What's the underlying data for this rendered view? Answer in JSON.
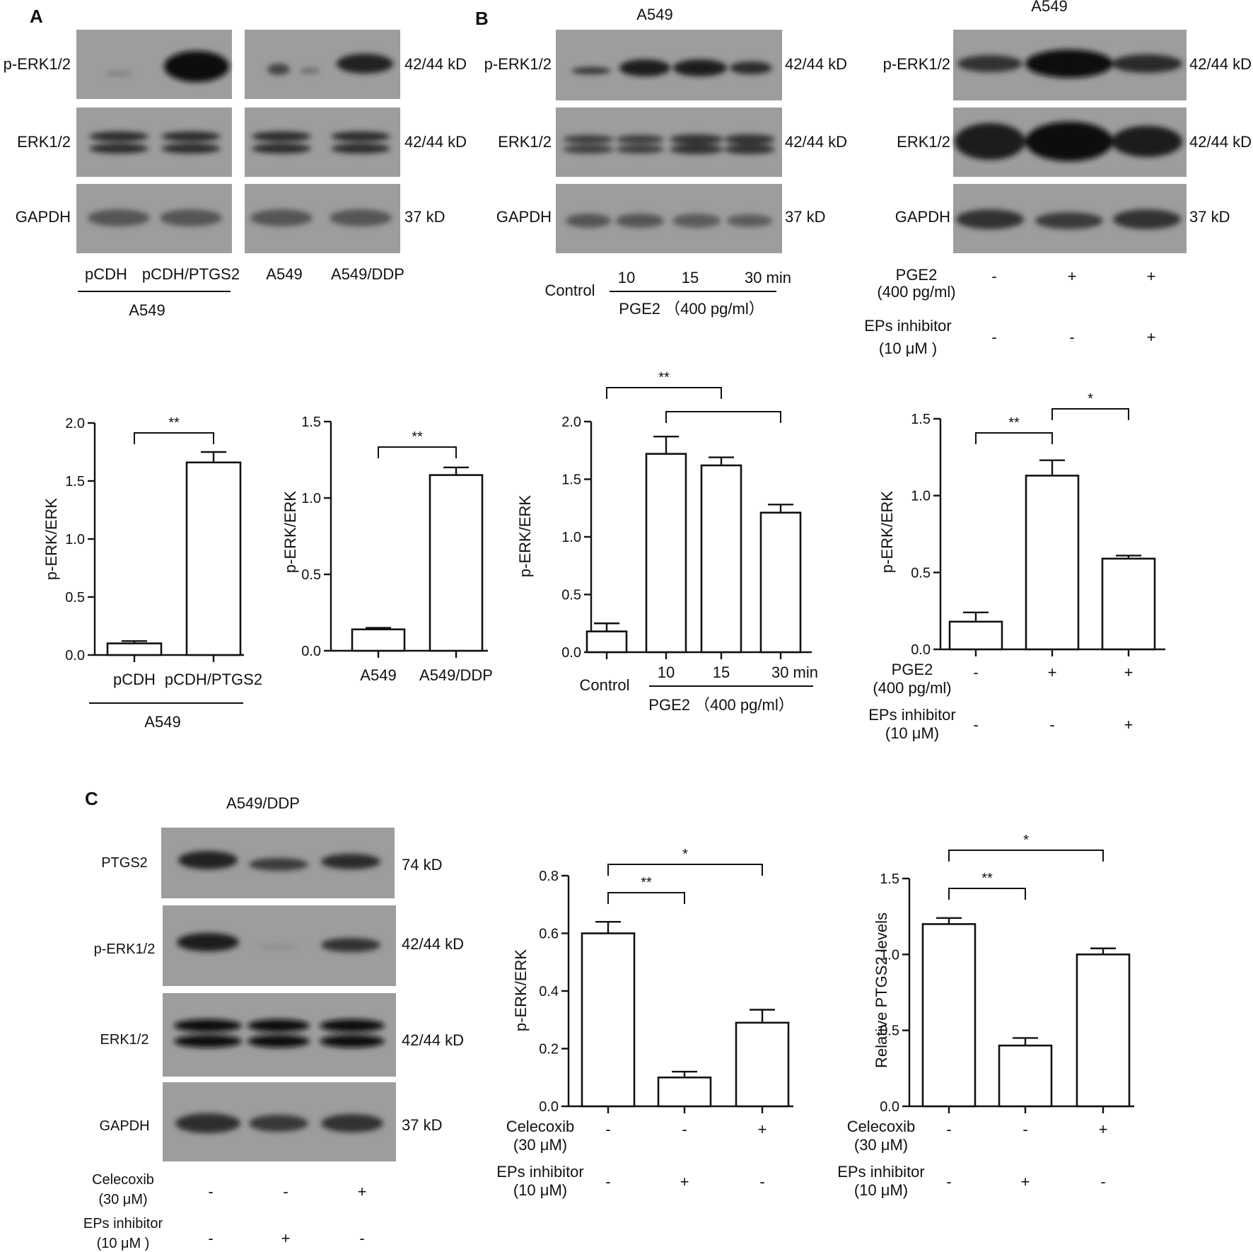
{
  "panels": {
    "A": {
      "letter": "A",
      "blot": {
        "rows": [
          {
            "name": "p-ERK1/2",
            "size": "42/44 kD"
          },
          {
            "name": "ERK1/2",
            "size": "42/44 kD"
          },
          {
            "name": "GAPDH",
            "size": "37 kD"
          }
        ],
        "lanes_left": [
          "pCDH",
          "pCDH/PTGS2"
        ],
        "group_label_left": "A549",
        "lanes_right": [
          "A549",
          "A549/DDP"
        ]
      }
    },
    "B": {
      "letter": "B",
      "blot1": {
        "title": "A549",
        "rows": [
          {
            "name": "p-ERK1/2",
            "size": "42/44 kD"
          },
          {
            "name": "ERK1/2",
            "size": "42/44 kD"
          },
          {
            "name": "GAPDH",
            "size": "37 kD"
          }
        ],
        "control": "Control",
        "times": [
          "10",
          "15",
          "30 min"
        ],
        "treatment": "PGE2 （400 pg/ml）"
      },
      "blot2": {
        "title": "A549",
        "rows": [
          {
            "name": "p-ERK1/2",
            "size": "42/44 kD"
          },
          {
            "name": "ERK1/2",
            "size": "42/44 kD"
          },
          {
            "name": "GAPDH",
            "size": "37 kD"
          }
        ],
        "cond1_line1": "PGE2",
        "cond1_line2": "(400 pg/ml)",
        "cond1_signs": [
          "-",
          "+",
          "+"
        ],
        "cond2_line1": "EPs inhibitor",
        "cond2_line2": "(10 μM )",
        "cond2_signs": [
          "-",
          "-",
          "+"
        ]
      }
    },
    "C": {
      "letter": "C",
      "blot": {
        "title": "A549/DDP",
        "rows": [
          {
            "name": "PTGS2",
            "size": "74 kD"
          },
          {
            "name": "p-ERK1/2",
            "size": "42/44 kD"
          },
          {
            "name": "ERK1/2",
            "size": "42/44 kD"
          },
          {
            "name": "GAPDH",
            "size": "37 kD"
          }
        ],
        "cond1_line1": "Celecoxib",
        "cond1_line2": "(30 μM)",
        "cond1_signs": [
          "-",
          "-",
          "+"
        ],
        "cond2_line1": "EPs inhibitor",
        "cond2_line2": "(10 μM )",
        "cond2_signs": [
          "-",
          "+",
          "-"
        ]
      }
    }
  },
  "chart_data": [
    {
      "id": "A1",
      "type": "bar",
      "ylabel": "p-ERK/ERK",
      "ylim": [
        0,
        2.0
      ],
      "yticks": [
        0.0,
        0.5,
        1.0,
        1.5,
        2.0
      ],
      "categories": [
        "pCDH",
        "pCDH/PTGS2"
      ],
      "values": [
        0.1,
        1.66
      ],
      "errors": [
        0.02,
        0.09
      ],
      "group_label": "A549",
      "brackets": [
        {
          "from": 0,
          "to": 1,
          "label": "**"
        }
      ]
    },
    {
      "id": "A2",
      "type": "bar",
      "ylabel": "p-ERK/ERK",
      "ylim": [
        0,
        1.5
      ],
      "yticks": [
        0.0,
        0.5,
        1.0,
        1.5
      ],
      "categories": [
        "A549",
        "A549/DDP"
      ],
      "values": [
        0.14,
        1.15
      ],
      "errors": [
        0.01,
        0.05
      ],
      "brackets": [
        {
          "from": 0,
          "to": 1,
          "label": "**"
        }
      ]
    },
    {
      "id": "B1",
      "type": "bar",
      "ylabel": "p-ERK/ERK",
      "ylim": [
        0,
        2.0
      ],
      "yticks": [
        0.0,
        0.5,
        1.0,
        1.5,
        2.0
      ],
      "categories": [
        "Control",
        "10",
        "15",
        "30 min"
      ],
      "values": [
        0.18,
        1.72,
        1.62,
        1.21
      ],
      "errors": [
        0.07,
        0.15,
        0.07,
        0.07
      ],
      "treatment": "PGE2 （400 pg/ml）",
      "brackets": [
        {
          "from": 0,
          "to": 2,
          "label": "**"
        },
        {
          "from": 1,
          "to": 3,
          "label": ""
        }
      ]
    },
    {
      "id": "B2",
      "type": "bar",
      "ylabel": "p-ERK/ERK",
      "ylim": [
        0,
        1.5
      ],
      "yticks": [
        0.0,
        0.5,
        1.0,
        1.5
      ],
      "values": [
        0.18,
        1.13,
        0.59
      ],
      "errors": [
        0.06,
        0.1,
        0.02
      ],
      "cond1_line1": "PGE2",
      "cond1_line2": "(400 pg/ml)",
      "cond1_signs": [
        "-",
        "+",
        "+"
      ],
      "cond2_line1": "EPs inhibitor",
      "cond2_line2": "(10 μM)",
      "cond2_signs": [
        "-",
        "-",
        "+"
      ],
      "brackets": [
        {
          "from": 0,
          "to": 1,
          "label": "**"
        },
        {
          "from": 1,
          "to": 2,
          "label": "*"
        }
      ]
    },
    {
      "id": "C1",
      "type": "bar",
      "ylabel": "p-ERK/ERK",
      "ylim": [
        0,
        0.8
      ],
      "yticks": [
        0.0,
        0.2,
        0.4,
        0.6,
        0.8
      ],
      "values": [
        0.6,
        0.1,
        0.29
      ],
      "errors": [
        0.04,
        0.02,
        0.045
      ],
      "cond1_line1": "Celecoxib",
      "cond1_line2": "(30 μM)",
      "cond1_signs": [
        "-",
        "-",
        "+"
      ],
      "cond2_line1": "EPs inhibitor",
      "cond2_line2": "(10 μM)",
      "cond2_signs": [
        "-",
        "+",
        "-"
      ],
      "brackets": [
        {
          "from": 0,
          "to": 1,
          "label": "**"
        },
        {
          "from": 0,
          "to": 2,
          "label": "*"
        }
      ]
    },
    {
      "id": "C2",
      "type": "bar",
      "ylabel": "Relative PTGS2 levels",
      "ylim": [
        0,
        1.5
      ],
      "yticks": [
        0.0,
        0.5,
        1.0,
        1.5
      ],
      "values": [
        1.2,
        0.4,
        1.0
      ],
      "errors": [
        0.04,
        0.05,
        0.04
      ],
      "cond1_line1": "Celecoxib",
      "cond1_line2": "(30 μM)",
      "cond1_signs": [
        "-",
        "-",
        "+"
      ],
      "cond2_line1": "EPs inhibitor",
      "cond2_line2": "(10 μM)",
      "cond2_signs": [
        "-",
        "+",
        "-"
      ],
      "brackets": [
        {
          "from": 0,
          "to": 1,
          "label": "**"
        },
        {
          "from": 0,
          "to": 2,
          "label": "*"
        }
      ]
    }
  ]
}
